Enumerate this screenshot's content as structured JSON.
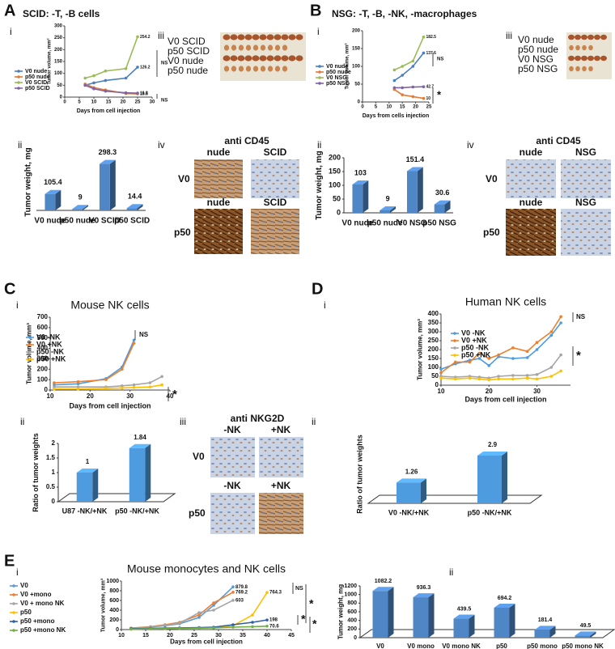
{
  "panel_letters": [
    "A",
    "B",
    "C",
    "D",
    "E"
  ],
  "headings": [
    "SCID: -T, -B cells",
    "NSG:  -T, -B, -NK, -macrophages"
  ],
  "sub_labels": [
    "i",
    "ii",
    "iii",
    "iv"
  ],
  "photos": [
    {
      "rows": [
        "V0 SCID",
        "p50 SCID",
        "V0 nude",
        "p50 nude"
      ]
    },
    {
      "rows": [
        "V0 nude",
        "p50 nude",
        "V0 NSG",
        "p50 NSG"
      ]
    }
  ],
  "stains": [
    {
      "title": "anti CD45",
      "cols": [
        "nude",
        "SCID"
      ],
      "rows": [
        "V0",
        "p50"
      ]
    },
    {
      "title": "anti CD45",
      "cols": [
        "nude",
        "NSG"
      ],
      "rows": [
        "V0",
        "p50"
      ]
    },
    {
      "title": "anti NKG2D",
      "cols": [
        "-NK",
        "+NK"
      ],
      "rows": [
        "V0",
        "p50"
      ]
    }
  ],
  "chart_data": [
    {
      "type": "line",
      "xlabel": "Days from cell injection",
      "ylabel": "Tumor volume, mm³",
      "x": [
        7,
        10,
        14,
        21,
        25
      ],
      "xlim": [
        0,
        30
      ],
      "xticks": [
        0,
        5,
        10,
        15,
        20,
        25,
        30
      ],
      "ylim": [
        0,
        300
      ],
      "yticks": [
        0,
        50,
        100,
        150,
        200,
        250,
        300
      ],
      "legend": "left",
      "end_labels": true,
      "series": [
        {
          "name": "V0 nude",
          "color": "#4a7fc1",
          "values": [
            50,
            60,
            70,
            80,
            126.2
          ]
        },
        {
          "name": "p50 nude",
          "color": "#e07b39",
          "values": [
            55,
            40,
            30,
            15,
            13.5
          ]
        },
        {
          "name": "V0 SCID",
          "color": "#9bbb59",
          "values": [
            80,
            90,
            110,
            120,
            254.2
          ]
        },
        {
          "name": "p50 SCID",
          "color": "#8064a2",
          "values": [
            50,
            35,
            25,
            18,
            16.8
          ]
        }
      ],
      "annotations": [
        "NS",
        "NS"
      ]
    },
    {
      "type": "bar",
      "ylabel": "Tumor weight, mg",
      "categories": [
        "V0 nude",
        "p50 nude",
        "V0 SCID",
        "p50 SCID"
      ],
      "values": [
        105.4,
        9,
        298.3,
        14.4
      ],
      "color": "#4f86c6"
    },
    {
      "type": "line",
      "xlabel": "Days from cells injection",
      "ylabel": "Tumor volume, mm³",
      "x": [
        12,
        15,
        19,
        23
      ],
      "xlim": [
        0,
        25
      ],
      "xticks": [
        0,
        5,
        10,
        15,
        20,
        25
      ],
      "ylim": [
        0,
        200
      ],
      "yticks": [
        0,
        50,
        100,
        150,
        200
      ],
      "legend": "left",
      "end_labels": true,
      "series": [
        {
          "name": "V0 nude",
          "color": "#4a7fc1",
          "values": [
            60,
            75,
            100,
            137.6
          ]
        },
        {
          "name": "p50 nude",
          "color": "#e07b39",
          "values": [
            35,
            20,
            15,
            10
          ]
        },
        {
          "name": "V0 NSG",
          "color": "#9bbb59",
          "values": [
            90,
            100,
            115,
            182.5
          ]
        },
        {
          "name": "p50 NSG",
          "color": "#8064a2",
          "values": [
            40,
            40,
            42,
            42.7
          ]
        }
      ],
      "annotations": [
        "NS",
        "*"
      ]
    },
    {
      "type": "bar",
      "ylabel": "Tumor weight, mg",
      "categories": [
        "V0 nude",
        "p50 nude",
        "V0 NSG",
        "p50 NSG"
      ],
      "values": [
        103,
        9,
        151.4,
        30.6
      ],
      "color": "#4f86c6",
      "ylim": [
        0,
        200
      ],
      "yticks": [
        0,
        50,
        100,
        150,
        200
      ]
    },
    {
      "type": "line",
      "title": "Mouse NK cells",
      "xlabel": "Days from cell injection",
      "ylabel": "Tumor volume, mm³",
      "x": [
        11,
        17,
        24,
        28,
        31,
        35,
        38
      ],
      "xlim": [
        10,
        40
      ],
      "xticks": [
        10,
        20,
        30,
        40
      ],
      "ylim": [
        0,
        700
      ],
      "yticks": [
        0,
        100,
        200,
        300,
        400,
        500,
        600,
        700
      ],
      "legend": "upper left",
      "series": [
        {
          "name": "V0 -NK",
          "color": "#4f9be0",
          "values": [
            50,
            60,
            110,
            220,
            480,
            null,
            null
          ]
        },
        {
          "name": "V0 +NK",
          "color": "#f07f2a",
          "values": [
            70,
            80,
            100,
            200,
            450,
            null,
            null
          ]
        },
        {
          "name": "p50 -NK",
          "color": "#a5a5a5",
          "values": [
            30,
            30,
            30,
            40,
            50,
            70,
            130
          ]
        },
        {
          "name": "p50 +NK",
          "color": "#ffc000",
          "values": [
            10,
            10,
            15,
            20,
            25,
            30,
            50
          ]
        }
      ],
      "annotations": [
        "NS",
        "*"
      ]
    },
    {
      "type": "bar",
      "ylabel": "Ratio of tumor weights",
      "categories": [
        "U87 -NK/+NK",
        "p50 -NK/+NK"
      ],
      "values": [
        1,
        1.84
      ],
      "color": "#4f9be0",
      "ylim": [
        0,
        2
      ],
      "yticks": [
        0,
        0.5,
        1,
        1.5,
        2
      ],
      "floor": true
    },
    {
      "type": "line",
      "title": "Human NK cells",
      "xlabel": "Days from cell injection",
      "ylabel": "Tumor volume, mm³",
      "x": [
        10,
        13,
        16,
        18,
        20,
        22,
        25,
        28,
        30,
        33,
        35
      ],
      "xlim": [
        10,
        37
      ],
      "xticks": [
        10,
        20,
        30
      ],
      "ylim": [
        0,
        400
      ],
      "yticks": [
        0,
        50,
        100,
        150,
        200,
        250,
        300,
        350,
        400
      ],
      "legend": "upper left",
      "series": [
        {
          "name": "V0 -NK",
          "color": "#4f9be0",
          "values": [
            90,
            120,
            140,
            150,
            110,
            160,
            150,
            155,
            200,
            280,
            350
          ]
        },
        {
          "name": "V0 +NK",
          "color": "#f07f2a",
          "values": [
            70,
            130,
            130,
            180,
            150,
            170,
            210,
            190,
            240,
            300,
            385
          ]
        },
        {
          "name": "p50 -NK",
          "color": "#a5a5a5",
          "values": [
            50,
            45,
            50,
            45,
            40,
            50,
            55,
            55,
            60,
            100,
            170
          ]
        },
        {
          "name": "p50 +NK",
          "color": "#ffc000",
          "values": [
            40,
            35,
            40,
            35,
            30,
            35,
            35,
            40,
            35,
            50,
            80
          ]
        }
      ],
      "annotations": [
        "NS",
        "*"
      ]
    },
    {
      "type": "bar",
      "ylabel": "Ratio of tumor weights",
      "categories": [
        "V0 -NK/+NK",
        "p50 -NK/+NK"
      ],
      "values": [
        1.26,
        2.9
      ],
      "color": "#4f9be0",
      "floor": true
    },
    {
      "type": "line",
      "title": "Mouse monocytes and NK cells",
      "xlabel": "Days from cell injection",
      "ylabel": "Tumor volume, mm³",
      "x": [
        12,
        16,
        19,
        22,
        26,
        29,
        33,
        37,
        40
      ],
      "xlim": [
        10,
        45
      ],
      "xticks": [
        10,
        15,
        20,
        25,
        30,
        35,
        40,
        45
      ],
      "ylim": [
        0,
        1000
      ],
      "yticks": [
        0,
        200,
        400,
        600,
        800,
        1000
      ],
      "legend": "left",
      "end_labels": true,
      "series": [
        {
          "name": "V0",
          "color": "#5b9bd5",
          "values": [
            30,
            50,
            80,
            120,
            250,
            500,
            879.8,
            null,
            null
          ]
        },
        {
          "name": "V0 +mono",
          "color": "#ed7d31",
          "values": [
            30,
            60,
            100,
            150,
            300,
            550,
            769.2,
            null,
            null
          ]
        },
        {
          "name": "V0 + mono NK",
          "color": "#a5a5a5",
          "values": [
            30,
            50,
            90,
            130,
            350,
            400,
            603,
            null,
            null
          ]
        },
        {
          "name": "p50",
          "color": "#ffc000",
          "values": [
            10,
            15,
            20,
            25,
            30,
            40,
            80,
            300,
            764.3
          ]
        },
        {
          "name": "p50 +mono",
          "color": "#2e5fa8",
          "values": [
            20,
            25,
            30,
            35,
            40,
            50,
            100,
            150,
            198
          ]
        },
        {
          "name": "p50 +mono NK",
          "color": "#70ad47",
          "values": [
            10,
            15,
            20,
            25,
            30,
            35,
            50,
            60,
            70.6
          ]
        }
      ],
      "annotations": [
        "NS",
        "*",
        "*",
        "*"
      ]
    },
    {
      "type": "bar",
      "ylabel": "Tumor weight, mg",
      "categories": [
        "V0",
        "V0 mono",
        "V0 mono NK",
        "p50",
        "p50 mono",
        "p50 mono NK"
      ],
      "values": [
        1082.2,
        936.3,
        439.5,
        694.2,
        181.4,
        49.5
      ],
      "color": "#4f86c6",
      "ylim": [
        0,
        1200
      ],
      "yticks": [
        0,
        200,
        400,
        600,
        800,
        1000,
        1200
      ],
      "floor": true
    }
  ]
}
